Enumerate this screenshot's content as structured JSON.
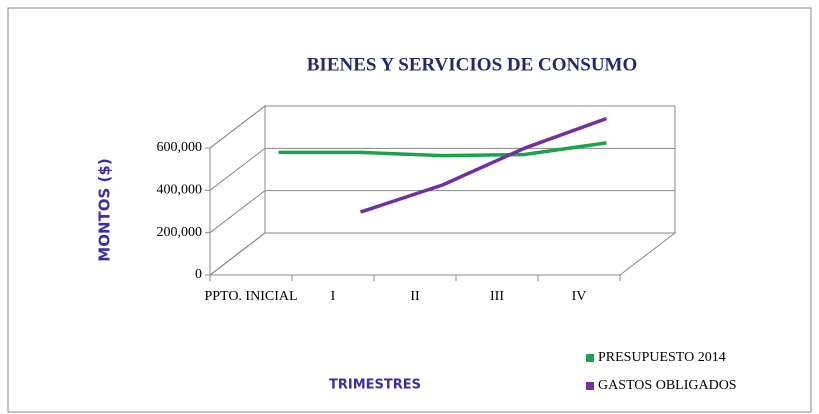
{
  "chart_data": {
    "type": "line",
    "title": "BIENES  Y SERVICIOS  DE  CONSUMO",
    "y_label": "MONTOS ($)",
    "x_label": "TRIMESTRES",
    "categories": [
      "PPTO. INICIAL",
      "I",
      "II",
      "III",
      "IV"
    ],
    "series": [
      {
        "name": "PRESUPUESTO 2014",
        "color": "#1aa34a",
        "values": [
          480000,
          480000,
          465000,
          470000,
          525000
        ]
      },
      {
        "name": "GASTOS OBLIGADOS",
        "color": "#7030a0",
        "values": [
          null,
          198000,
          326000,
          500000,
          640000
        ]
      }
    ],
    "ylim": [
      0,
      600000
    ],
    "yticks": [
      0,
      {
        "value": 200000,
        "label": "200,000"
      },
      {
        "value": 400000,
        "label": "400,000"
      },
      {
        "value": 600000,
        "label": "600,000"
      }
    ],
    "grid": true,
    "legend": "bottom-right"
  }
}
